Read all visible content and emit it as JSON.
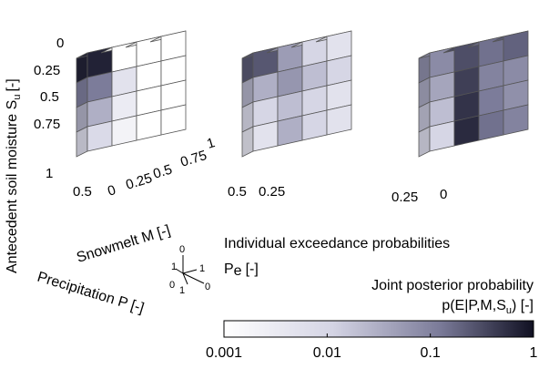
{
  "chart_data": {
    "type": "heatmap",
    "title": "",
    "y_axis": {
      "label": "Antecedent soil moisture S",
      "subscript": "u",
      "unit": "[-]",
      "ticks": [
        "0",
        "0.25",
        "0.5",
        "0.75",
        "1"
      ]
    },
    "x_axis": {
      "label": "Snowmelt M [-]",
      "ticks": [
        "0",
        "0.25",
        "0.5",
        "0.75",
        "1"
      ]
    },
    "z_axis": {
      "label": "Precipitation P [-]",
      "panel_ticks": [
        "0.5",
        "0.5",
        "0.25"
      ],
      "panel_front_tick": [
        "",
        "0.25",
        "0"
      ]
    },
    "triad": {
      "up": "0",
      "left": "1",
      "left2": "0",
      "right": "1",
      "bottom1": "1",
      "bottom2": "0"
    },
    "individual": {
      "label": "Individual exceedance probabilities",
      "symbol": "P",
      "subscript": "e",
      "unit": "[-]"
    },
    "colorbar": {
      "label_line1": "Joint posterior probability",
      "label_line2_prefix": "p(E|P,M,S",
      "label_line2_sub": "u",
      "label_line2_suffix": ") [-]",
      "scale": "log",
      "range": [
        0.001,
        1
      ],
      "ticks": [
        "0.001",
        "0.01",
        "0.1",
        "1"
      ]
    },
    "panels": [
      {
        "values": [
          [
            0.7,
            0.001,
            0.001,
            0.001
          ],
          [
            0.12,
            0.005,
            0.001,
            0.001
          ],
          [
            0.03,
            0.003,
            0.001,
            0.001
          ],
          [
            0.008,
            0.002,
            0.001,
            0.001
          ]
        ]
      },
      {
        "values": [
          [
            0.25,
            0.05,
            0.01,
            0.005
          ],
          [
            0.03,
            0.06,
            0.02,
            0.01
          ],
          [
            0.01,
            0.02,
            0.01,
            0.005
          ],
          [
            0.005,
            0.03,
            0.01,
            0.005
          ]
        ]
      },
      {
        "values": [
          [
            0.08,
            0.3,
            0.15,
            0.2
          ],
          [
            0.04,
            0.4,
            0.1,
            0.08
          ],
          [
            0.02,
            0.5,
            0.12,
            0.07
          ],
          [
            0.01,
            0.6,
            0.15,
            0.1
          ]
        ]
      }
    ]
  }
}
